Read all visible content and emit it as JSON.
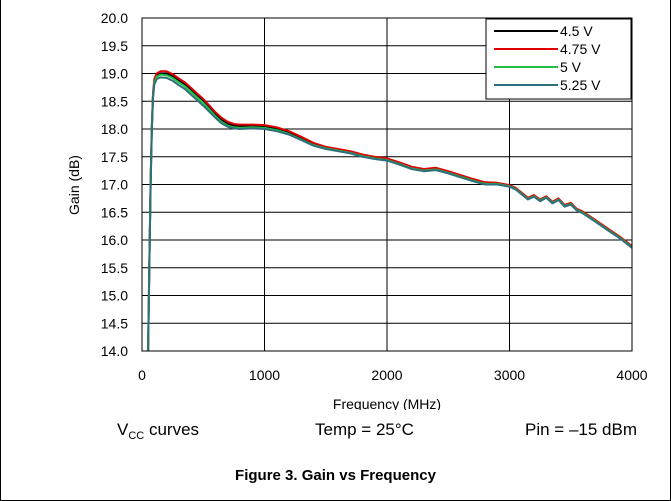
{
  "chart_data": {
    "type": "line",
    "title": "",
    "xlabel": "Frequency (MHz)",
    "ylabel": "Gain (dB)",
    "xlim": [
      0,
      4000
    ],
    "ylim": [
      14.0,
      20.0
    ],
    "xticks": [
      "0",
      "1000",
      "2000",
      "3000",
      "4000"
    ],
    "yticks": [
      "14.0",
      "14.5",
      "15.0",
      "15.5",
      "16.0",
      "16.5",
      "17.0",
      "17.5",
      "18.0",
      "18.5",
      "19.0",
      "19.5",
      "20.0"
    ],
    "grid": true,
    "legend_position": "top-right",
    "x": [
      50,
      60,
      70,
      80,
      90,
      100,
      120,
      150,
      200,
      250,
      300,
      350,
      400,
      450,
      500,
      550,
      600,
      650,
      700,
      750,
      800,
      900,
      1000,
      1100,
      1200,
      1300,
      1400,
      1500,
      1600,
      1700,
      1800,
      1900,
      2000,
      2100,
      2200,
      2300,
      2400,
      2500,
      2600,
      2700,
      2800,
      2900,
      3000,
      3050,
      3100,
      3150,
      3200,
      3250,
      3300,
      3350,
      3400,
      3450,
      3500,
      3550,
      3600,
      3700,
      3800,
      3900,
      4000
    ],
    "series": [
      {
        "name": "4.5 V",
        "color": "#000000",
        "values": [
          14.0,
          15.5,
          17.0,
          18.0,
          18.6,
          18.85,
          18.97,
          19.0,
          19.0,
          18.95,
          18.87,
          18.8,
          18.7,
          18.6,
          18.5,
          18.38,
          18.26,
          18.16,
          18.09,
          18.06,
          18.05,
          18.05,
          18.04,
          18.0,
          17.93,
          17.83,
          17.73,
          17.66,
          17.62,
          17.58,
          17.52,
          17.48,
          17.45,
          17.38,
          17.3,
          17.26,
          17.28,
          17.22,
          17.15,
          17.08,
          17.02,
          17.02,
          16.98,
          16.93,
          16.84,
          16.75,
          16.8,
          16.72,
          16.78,
          16.68,
          16.74,
          16.62,
          16.66,
          16.55,
          16.5,
          16.35,
          16.2,
          16.05,
          15.88
        ]
      },
      {
        "name": "4.75 V",
        "color": "#e00000",
        "values": [
          14.0,
          15.55,
          17.05,
          18.05,
          18.65,
          18.9,
          19.0,
          19.04,
          19.04,
          18.99,
          18.91,
          18.84,
          18.74,
          18.64,
          18.54,
          18.42,
          18.3,
          18.2,
          18.13,
          18.09,
          18.08,
          18.08,
          18.07,
          18.03,
          17.96,
          17.86,
          17.75,
          17.68,
          17.64,
          17.6,
          17.54,
          17.5,
          17.47,
          17.4,
          17.32,
          17.28,
          17.3,
          17.24,
          17.17,
          17.1,
          17.04,
          17.03,
          16.99,
          16.94,
          16.85,
          16.76,
          16.81,
          16.73,
          16.79,
          16.69,
          16.75,
          16.63,
          16.67,
          16.56,
          16.51,
          16.36,
          16.21,
          16.06,
          15.89
        ]
      },
      {
        "name": "5 V",
        "color": "#22c040",
        "values": [
          14.0,
          15.5,
          17.0,
          18.0,
          18.6,
          18.84,
          18.94,
          18.98,
          18.97,
          18.92,
          18.84,
          18.77,
          18.67,
          18.57,
          18.47,
          18.35,
          18.23,
          18.13,
          18.06,
          18.03,
          18.02,
          18.03,
          18.02,
          17.98,
          17.91,
          17.81,
          17.71,
          17.65,
          17.61,
          17.57,
          17.51,
          17.47,
          17.44,
          17.37,
          17.29,
          17.25,
          17.27,
          17.21,
          17.14,
          17.07,
          17.01,
          17.01,
          16.97,
          16.92,
          16.83,
          16.74,
          16.79,
          16.71,
          16.77,
          16.67,
          16.73,
          16.61,
          16.65,
          16.54,
          16.49,
          16.34,
          16.19,
          16.04,
          15.87
        ]
      },
      {
        "name": "5.25 V",
        "color": "#2e6f7e",
        "values": [
          14.0,
          15.45,
          16.95,
          17.95,
          18.55,
          18.8,
          18.9,
          18.93,
          18.92,
          18.87,
          18.79,
          18.72,
          18.62,
          18.52,
          18.42,
          18.31,
          18.2,
          18.1,
          18.04,
          18.01,
          18.0,
          18.01,
          18.0,
          17.96,
          17.9,
          17.8,
          17.7,
          17.64,
          17.6,
          17.56,
          17.5,
          17.46,
          17.43,
          17.36,
          17.28,
          17.24,
          17.26,
          17.2,
          17.13,
          17.06,
          17.0,
          17.0,
          16.96,
          16.91,
          16.82,
          16.73,
          16.78,
          16.7,
          16.76,
          16.66,
          16.72,
          16.6,
          16.64,
          16.53,
          16.48,
          16.33,
          16.18,
          16.03,
          15.86
        ]
      }
    ]
  },
  "notes": {
    "vcc_main": "V",
    "vcc_sub": "CC",
    "vcc_rest": " curves",
    "temp": "Temp = 25°C",
    "pin": "Pin = –15 dBm"
  },
  "caption": "Figure 3.  Gain vs Frequency"
}
